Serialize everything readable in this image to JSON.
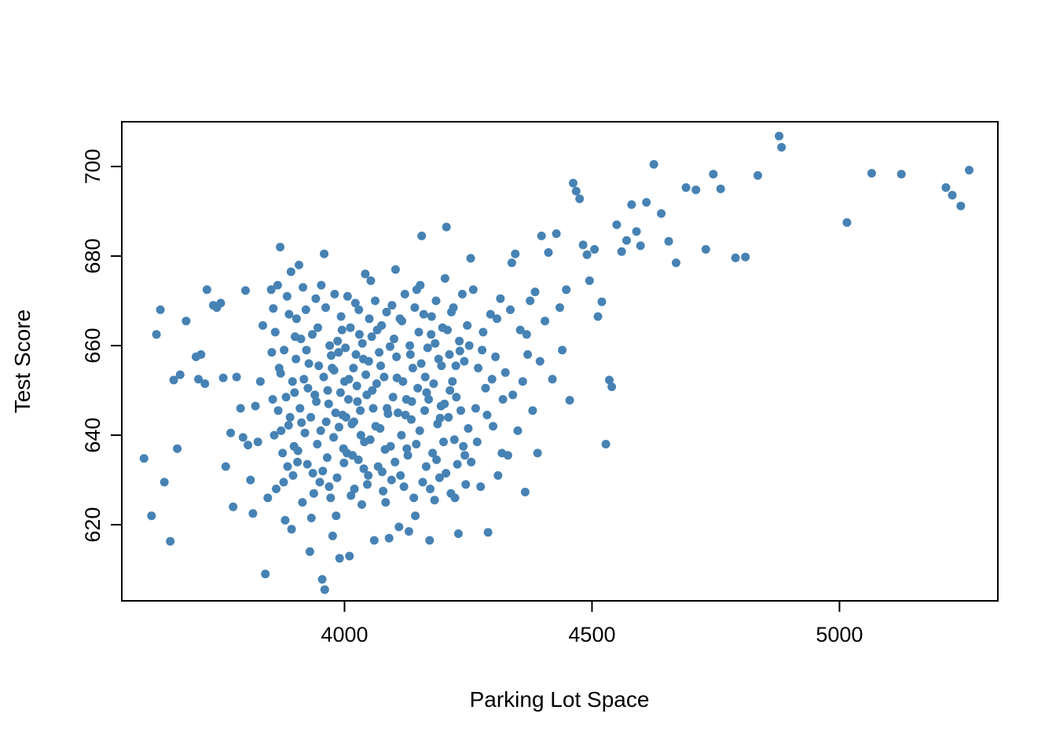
{
  "figure": {
    "background": "#ffffff",
    "border_color": "#000000"
  },
  "chart_data": {
    "type": "scatter",
    "title": "",
    "xlabel": "Parking Lot Space",
    "ylabel": "Test Score",
    "xlim": [
      3550,
      5320
    ],
    "ylim": [
      603,
      710
    ],
    "x_ticks": [
      4000,
      4500,
      5000
    ],
    "y_ticks": [
      620,
      640,
      660,
      680,
      700
    ],
    "grid": false,
    "legend": null,
    "point_color": "#4682B4",
    "point_radius": 5.5,
    "points": [
      [
        3595,
        634.8
      ],
      [
        3610,
        622
      ],
      [
        3620,
        662.5
      ],
      [
        3628,
        668
      ],
      [
        3636,
        629.5
      ],
      [
        3648,
        616.3
      ],
      [
        3655,
        652.3
      ],
      [
        3662,
        637
      ],
      [
        3668,
        653.5
      ],
      [
        3680,
        665.5
      ],
      [
        3700,
        657.5
      ],
      [
        3705,
        652.5
      ],
      [
        3710,
        658
      ],
      [
        3718,
        651.5
      ],
      [
        3722,
        672.5
      ],
      [
        3735,
        669
      ],
      [
        3742,
        668.5
      ],
      [
        3750,
        669.5
      ],
      [
        3755,
        652.8
      ],
      [
        3760,
        633
      ],
      [
        3770,
        640.5
      ],
      [
        3775,
        624
      ],
      [
        3782,
        653
      ],
      [
        3790,
        646
      ],
      [
        3795,
        639.5
      ],
      [
        3800,
        672.3
      ],
      [
        3805,
        637.8
      ],
      [
        3810,
        630
      ],
      [
        3815,
        622.5
      ],
      [
        3820,
        646.5
      ],
      [
        3825,
        638.5
      ],
      [
        3830,
        652
      ],
      [
        3835,
        664.5
      ],
      [
        3840,
        609
      ],
      [
        3845,
        626
      ],
      [
        3852,
        672.5
      ],
      [
        3855,
        648
      ],
      [
        3858,
        640
      ],
      [
        3860,
        663
      ],
      [
        3862,
        628
      ],
      [
        3865,
        673.5
      ],
      [
        3868,
        655
      ],
      [
        3870,
        682
      ],
      [
        3872,
        641
      ],
      [
        3875,
        636
      ],
      [
        3878,
        659
      ],
      [
        3880,
        621
      ],
      [
        3882,
        648.5
      ],
      [
        3885,
        633
      ],
      [
        3888,
        667
      ],
      [
        3890,
        644
      ],
      [
        3892,
        676.5
      ],
      [
        3895,
        652
      ],
      [
        3898,
        637.5
      ],
      [
        3900,
        662
      ],
      [
        3853,
        658.5
      ],
      [
        3866,
        645.5
      ],
      [
        3877,
        629.5
      ],
      [
        3884,
        671
      ],
      [
        3893,
        619
      ],
      [
        3899,
        649.5
      ],
      [
        3856,
        668.3
      ],
      [
        3871,
        653.8
      ],
      [
        3887,
        642.2
      ],
      [
        3896,
        631
      ],
      [
        3902,
        657
      ],
      [
        3905,
        634
      ],
      [
        3908,
        678
      ],
      [
        3910,
        646
      ],
      [
        3912,
        661.5
      ],
      [
        3915,
        625
      ],
      [
        3918,
        652.5
      ],
      [
        3920,
        640.5
      ],
      [
        3922,
        668
      ],
      [
        3925,
        633.5
      ],
      [
        3928,
        656
      ],
      [
        3930,
        614
      ],
      [
        3932,
        644
      ],
      [
        3935,
        662.5
      ],
      [
        3938,
        627
      ],
      [
        3940,
        649
      ],
      [
        3942,
        670.5
      ],
      [
        3945,
        638
      ],
      [
        3948,
        655.5
      ],
      [
        3950,
        629.5
      ],
      [
        3903,
        666
      ],
      [
        3913,
        642.8
      ],
      [
        3923,
        659
      ],
      [
        3933,
        621.5
      ],
      [
        3943,
        647.5
      ],
      [
        3906,
        636.5
      ],
      [
        3916,
        673
      ],
      [
        3926,
        650.5
      ],
      [
        3936,
        631.5
      ],
      [
        3946,
        664
      ],
      [
        3952,
        641
      ],
      [
        3955,
        607.8
      ],
      [
        3958,
        653
      ],
      [
        3960,
        605.5
      ],
      [
        3962,
        668.5
      ],
      [
        3965,
        635
      ],
      [
        3968,
        647
      ],
      [
        3970,
        660
      ],
      [
        3972,
        626
      ],
      [
        3975,
        655
      ],
      [
        3978,
        639.5
      ],
      [
        3980,
        671.5
      ],
      [
        3982,
        645
      ],
      [
        3985,
        630.5
      ],
      [
        3988,
        658.5
      ],
      [
        3990,
        612.5
      ],
      [
        3992,
        649.5
      ],
      [
        3995,
        663.5
      ],
      [
        3998,
        637
      ],
      [
        4000,
        652
      ],
      [
        3953,
        673.5
      ],
      [
        3963,
        643
      ],
      [
        3973,
        657.8
      ],
      [
        3983,
        622
      ],
      [
        3993,
        666.5
      ],
      [
        3956,
        632
      ],
      [
        3966,
        650
      ],
      [
        3976,
        617.5
      ],
      [
        3986,
        661
      ],
      [
        3996,
        644.5
      ],
      [
        3959,
        680.5
      ],
      [
        3969,
        628.5
      ],
      [
        3979,
        654.5
      ],
      [
        3989,
        641.8
      ],
      [
        3999,
        633.8
      ],
      [
        4002,
        659.5
      ],
      [
        4005,
        636
      ],
      [
        4008,
        648
      ],
      [
        4010,
        613
      ],
      [
        4012,
        664
      ],
      [
        4015,
        642.5
      ],
      [
        4018,
        655
      ],
      [
        4020,
        628
      ],
      [
        4022,
        669.5
      ],
      [
        4025,
        651
      ],
      [
        4028,
        634.5
      ],
      [
        4030,
        662.5
      ],
      [
        4032,
        645.5
      ],
      [
        4035,
        624.5
      ],
      [
        4038,
        657
      ],
      [
        4040,
        638.5
      ],
      [
        4042,
        676
      ],
      [
        4045,
        649
      ],
      [
        4048,
        631
      ],
      [
        4050,
        666
      ],
      [
        4003,
        644
      ],
      [
        4013,
        626.5
      ],
      [
        4023,
        658
      ],
      [
        4033,
        640
      ],
      [
        4043,
        653.5
      ],
      [
        4006,
        671
      ],
      [
        4016,
        635.5
      ],
      [
        4026,
        647.5
      ],
      [
        4036,
        660.5
      ],
      [
        4046,
        629
      ],
      [
        4009,
        652.5
      ],
      [
        4019,
        643
      ],
      [
        4029,
        668
      ],
      [
        4039,
        632.5
      ],
      [
        4049,
        656.5
      ],
      [
        4052,
        639
      ],
      [
        4055,
        662
      ],
      [
        4058,
        646
      ],
      [
        4060,
        616.5
      ],
      [
        4062,
        670
      ],
      [
        4065,
        651.5
      ],
      [
        4068,
        633
      ],
      [
        4070,
        658.5
      ],
      [
        4072,
        641.5
      ],
      [
        4075,
        664.5
      ],
      [
        4078,
        627.5
      ],
      [
        4080,
        653
      ],
      [
        4082,
        636.8
      ],
      [
        4085,
        667.5
      ],
      [
        4088,
        644.8
      ],
      [
        4090,
        617
      ],
      [
        4092,
        659.8
      ],
      [
        4095,
        630
      ],
      [
        4098,
        648.5
      ],
      [
        4100,
        661.5
      ],
      [
        4053,
        674.5
      ],
      [
        4063,
        642
      ],
      [
        4073,
        655.5
      ],
      [
        4083,
        625
      ],
      [
        4093,
        637.5
      ],
      [
        4056,
        650
      ],
      [
        4066,
        663.5
      ],
      [
        4076,
        631.8
      ],
      [
        4086,
        646
      ],
      [
        4096,
        669
      ],
      [
        4102,
        634
      ],
      [
        4105,
        657.5
      ],
      [
        4108,
        645
      ],
      [
        4110,
        619.5
      ],
      [
        4112,
        666
      ],
      [
        4115,
        640
      ],
      [
        4118,
        652
      ],
      [
        4120,
        628.5
      ],
      [
        4122,
        671.5
      ],
      [
        4125,
        648
      ],
      [
        4128,
        635.5
      ],
      [
        4130,
        618.5
      ],
      [
        4132,
        660
      ],
      [
        4135,
        643.5
      ],
      [
        4138,
        655
      ],
      [
        4140,
        626
      ],
      [
        4142,
        668.5
      ],
      [
        4145,
        638
      ],
      [
        4148,
        650.5
      ],
      [
        4150,
        663
      ],
      [
        4103,
        677
      ],
      [
        4113,
        631
      ],
      [
        4123,
        644.5
      ],
      [
        4133,
        658
      ],
      [
        4143,
        622
      ],
      [
        4106,
        652.8
      ],
      [
        4116,
        665.5
      ],
      [
        4126,
        637
      ],
      [
        4136,
        647.5
      ],
      [
        4146,
        672.5
      ],
      [
        4152,
        641
      ],
      [
        4155,
        656
      ],
      [
        4158,
        629.5
      ],
      [
        4160,
        667
      ],
      [
        4162,
        645.5
      ],
      [
        4165,
        633
      ],
      [
        4168,
        659.5
      ],
      [
        4170,
        648
      ],
      [
        4172,
        616.5
      ],
      [
        4175,
        662.5
      ],
      [
        4178,
        636
      ],
      [
        4180,
        651.5
      ],
      [
        4182,
        625.5
      ],
      [
        4185,
        670
      ],
      [
        4188,
        642.5
      ],
      [
        4190,
        657
      ],
      [
        4192,
        630.5
      ],
      [
        4195,
        646.5
      ],
      [
        4198,
        664
      ],
      [
        4200,
        638.5
      ],
      [
        4153,
        673.5
      ],
      [
        4163,
        653
      ],
      [
        4173,
        628
      ],
      [
        4183,
        660.5
      ],
      [
        4193,
        643.8
      ],
      [
        4156,
        684.5
      ],
      [
        4166,
        649.5
      ],
      [
        4176,
        666.5
      ],
      [
        4186,
        634.5
      ],
      [
        4196,
        655.5
      ],
      [
        4202,
        647
      ],
      [
        4205,
        631.5
      ],
      [
        4208,
        663.5
      ],
      [
        4210,
        644
      ],
      [
        4212,
        658
      ],
      [
        4215,
        627
      ],
      [
        4218,
        652
      ],
      [
        4220,
        668.5
      ],
      [
        4222,
        639
      ],
      [
        4225,
        655.5
      ],
      [
        4228,
        633.5
      ],
      [
        4230,
        618
      ],
      [
        4232,
        661
      ],
      [
        4235,
        645.5
      ],
      [
        4238,
        671.5
      ],
      [
        4240,
        637.5
      ],
      [
        4242,
        656.5
      ],
      [
        4245,
        629
      ],
      [
        4248,
        664.5
      ],
      [
        4250,
        641.5
      ],
      [
        4203,
        675
      ],
      [
        4213,
        650
      ],
      [
        4223,
        626
      ],
      [
        4233,
        658.8
      ],
      [
        4243,
        635.5
      ],
      [
        4206,
        686.5
      ],
      [
        4216,
        667.5
      ],
      [
        4226,
        648.5
      ],
      [
        4252,
        660
      ],
      [
        4256,
        634
      ],
      [
        4260,
        672.5
      ],
      [
        4265,
        646
      ],
      [
        4270,
        655
      ],
      [
        4275,
        628.5
      ],
      [
        4280,
        663
      ],
      [
        4285,
        650.5
      ],
      [
        4290,
        618.3
      ],
      [
        4295,
        667
      ],
      [
        4300,
        642
      ],
      [
        4305,
        657.5
      ],
      [
        4310,
        631
      ],
      [
        4315,
        670.5
      ],
      [
        4320,
        648
      ],
      [
        4255,
        679.5
      ],
      [
        4268,
        638.5
      ],
      [
        4278,
        659
      ],
      [
        4288,
        644.5
      ],
      [
        4298,
        652.5
      ],
      [
        4308,
        666
      ],
      [
        4318,
        636
      ],
      [
        4325,
        654
      ],
      [
        4330,
        635.5
      ],
      [
        4335,
        668
      ],
      [
        4340,
        649
      ],
      [
        4345,
        680.5
      ],
      [
        4350,
        641
      ],
      [
        4355,
        663.5
      ],
      [
        4360,
        652
      ],
      [
        4365,
        627.3
      ],
      [
        4370,
        658
      ],
      [
        4375,
        670
      ],
      [
        4380,
        645.5
      ],
      [
        4385,
        672
      ],
      [
        4390,
        636
      ],
      [
        4395,
        656.5
      ],
      [
        4398,
        684.5
      ],
      [
        4338,
        678.5
      ],
      [
        4368,
        662.5
      ],
      [
        4405,
        665.5
      ],
      [
        4412,
        680.8
      ],
      [
        4420,
        652.5
      ],
      [
        4428,
        685
      ],
      [
        4435,
        668.5
      ],
      [
        4440,
        659
      ],
      [
        4448,
        672.5
      ],
      [
        4455,
        647.8
      ],
      [
        4462,
        696.3
      ],
      [
        4468,
        694.5
      ],
      [
        4475,
        692.8
      ],
      [
        4482,
        682.5
      ],
      [
        4490,
        680.3
      ],
      [
        4495,
        674.5
      ],
      [
        4505,
        681.5
      ],
      [
        4512,
        666.5
      ],
      [
        4520,
        669.8
      ],
      [
        4528,
        638
      ],
      [
        4535,
        652.3
      ],
      [
        4540,
        650.8
      ],
      [
        4550,
        687
      ],
      [
        4560,
        681
      ],
      [
        4570,
        683.5
      ],
      [
        4580,
        691.5
      ],
      [
        4590,
        685.5
      ],
      [
        4598,
        682.3
      ],
      [
        4610,
        692
      ],
      [
        4625,
        700.5
      ],
      [
        4640,
        689.5
      ],
      [
        4655,
        683.3
      ],
      [
        4670,
        678.5
      ],
      [
        4690,
        695.3
      ],
      [
        4710,
        694.8
      ],
      [
        4730,
        681.5
      ],
      [
        4745,
        698.3
      ],
      [
        4760,
        695
      ],
      [
        4790,
        679.6
      ],
      [
        4810,
        679.8
      ],
      [
        4835,
        698
      ],
      [
        4878,
        706.8
      ],
      [
        4883,
        704.3
      ],
      [
        5015,
        687.5
      ],
      [
        5065,
        698.5
      ],
      [
        5125,
        698.3
      ],
      [
        5215,
        695.3
      ],
      [
        5228,
        693.6
      ],
      [
        5245,
        691.2
      ],
      [
        5262,
        699.2
      ]
    ]
  }
}
